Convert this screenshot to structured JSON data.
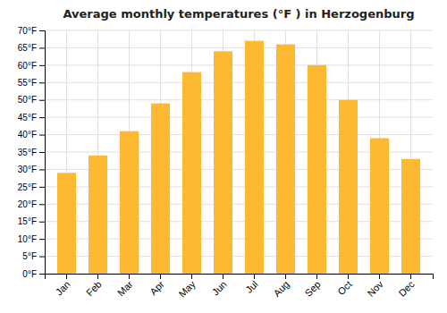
{
  "chart_data": {
    "type": "bar",
    "title": "Average monthly temperatures (°F ) in Herzogenburg",
    "categories": [
      "Jan",
      "Feb",
      "Mar",
      "Apr",
      "May",
      "Jun",
      "Jul",
      "Aug",
      "Sep",
      "Oct",
      "Nov",
      "Dec"
    ],
    "values": [
      29,
      34,
      41,
      49,
      58,
      64,
      67,
      66,
      60,
      50,
      39,
      33
    ],
    "color": "#FDB931",
    "ylim": [
      0,
      70
    ],
    "yticks": [
      {
        "value": 0,
        "label": "0°F"
      },
      {
        "value": 5,
        "label": "5°F"
      },
      {
        "value": 10,
        "label": "10°F"
      },
      {
        "value": 15,
        "label": "15°F"
      },
      {
        "value": 20,
        "label": "20°F"
      },
      {
        "value": 25,
        "label": "25°F"
      },
      {
        "value": 30,
        "label": "30°F"
      },
      {
        "value": 35,
        "label": "35°F"
      },
      {
        "value": 40,
        "label": "40°F"
      },
      {
        "value": 45,
        "label": "45°F"
      },
      {
        "value": 50,
        "label": "50°F"
      },
      {
        "value": 55,
        "label": "55°F"
      },
      {
        "value": 60,
        "label": "60°F"
      },
      {
        "value": 65,
        "label": "65°F"
      },
      {
        "value": 70,
        "label": "70°F"
      }
    ],
    "grid": true
  }
}
